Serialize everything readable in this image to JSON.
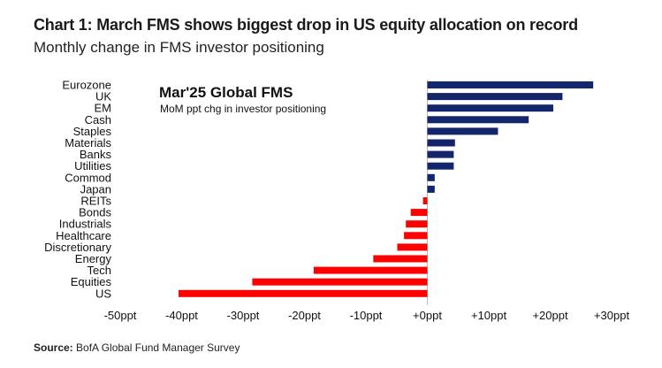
{
  "header": {
    "title": "Chart 1: March FMS shows biggest drop in US equity allocation on record",
    "subtitle": "Monthly change in FMS investor positioning"
  },
  "footer": {
    "source_label": "Source:",
    "source_text": "BofA Global Fund Manager Survey"
  },
  "colors": {
    "positive": "#13266b",
    "negative": "#ff0000",
    "axis": "#888888"
  },
  "chart_data": {
    "type": "bar",
    "orientation": "horizontal",
    "title": "Mar'25 Global FMS",
    "subtitle": "MoM ppt chg in investor positioning",
    "categories": [
      "Eurozone",
      "UK",
      "EM",
      "Cash",
      "Staples",
      "Materials",
      "Banks",
      "Utilities",
      "Commod",
      "Japan",
      "REITs",
      "Bonds",
      "Industrials",
      "Healthcare",
      "Discretionary",
      "Energy",
      "Tech",
      "Equities",
      "US"
    ],
    "values": [
      27,
      22,
      20.5,
      16.5,
      11.5,
      4.5,
      4.3,
      4.3,
      1.2,
      1.2,
      -0.7,
      -2.7,
      -3.5,
      -3.8,
      -4.9,
      -8.8,
      -18.5,
      -28.5,
      -40.5
    ],
    "xlim": [
      -50,
      30
    ],
    "xticks": [
      -50,
      -40,
      -30,
      -20,
      -10,
      0,
      10,
      20,
      30
    ],
    "xtick_labels": [
      "-50ppt",
      "-40ppt",
      "-30ppt",
      "-20ppt",
      "-10ppt",
      "+0ppt",
      "+10ppt",
      "+20ppt",
      "+30ppt"
    ],
    "grid": false,
    "legend": "none"
  }
}
